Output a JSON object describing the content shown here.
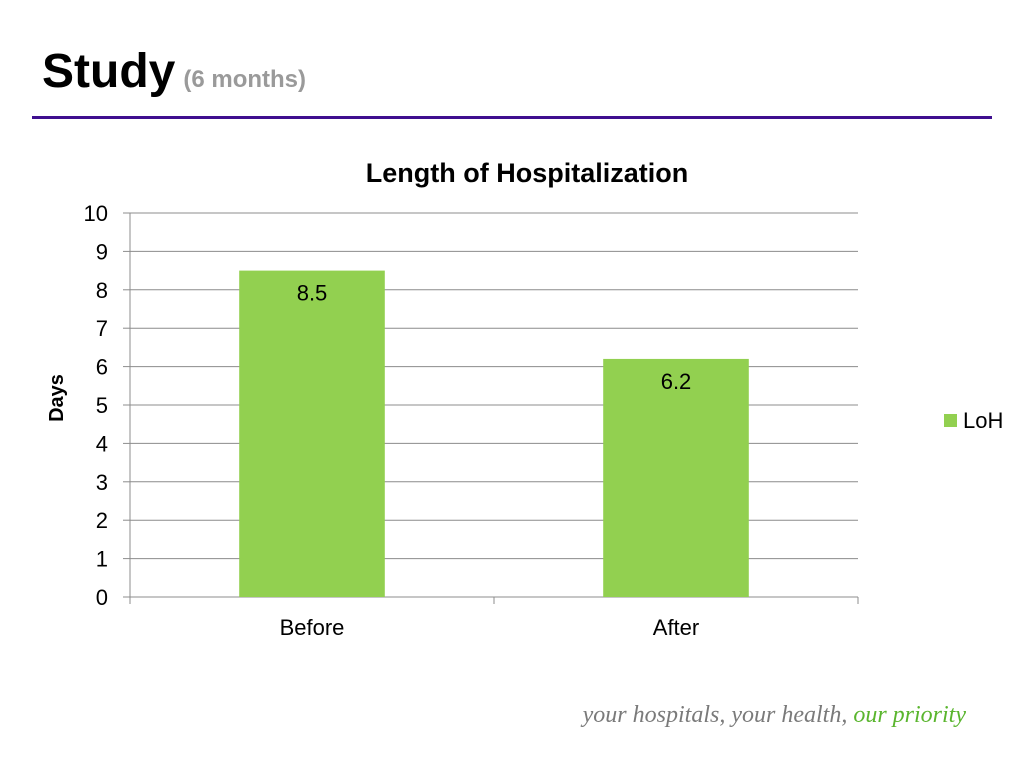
{
  "slide": {
    "title": "Study",
    "subtitle": "(6 months)",
    "rule_color": "#3f0f8f",
    "title_color": "#000000",
    "subtitle_color": "#9a9a9a"
  },
  "footer": {
    "tagline_part1": "your hospitals, your health,",
    "tagline_part2": "our priority",
    "tagline_color": "#7a7a7a",
    "accent_color": "#5ab52e"
  },
  "chart_data": {
    "type": "bar",
    "title": "Length of Hospitalization",
    "xlabel": "",
    "ylabel": "Days",
    "categories": [
      "Before",
      "After"
    ],
    "series": [
      {
        "name": "LoH",
        "values": [
          8.5,
          6.2
        ],
        "color": "#92d050"
      }
    ],
    "ylim": [
      0,
      10
    ],
    "yticks": [
      0,
      1,
      2,
      3,
      4,
      5,
      6,
      7,
      8,
      9,
      10
    ],
    "data_labels": true,
    "grid": true,
    "legend": "right"
  }
}
